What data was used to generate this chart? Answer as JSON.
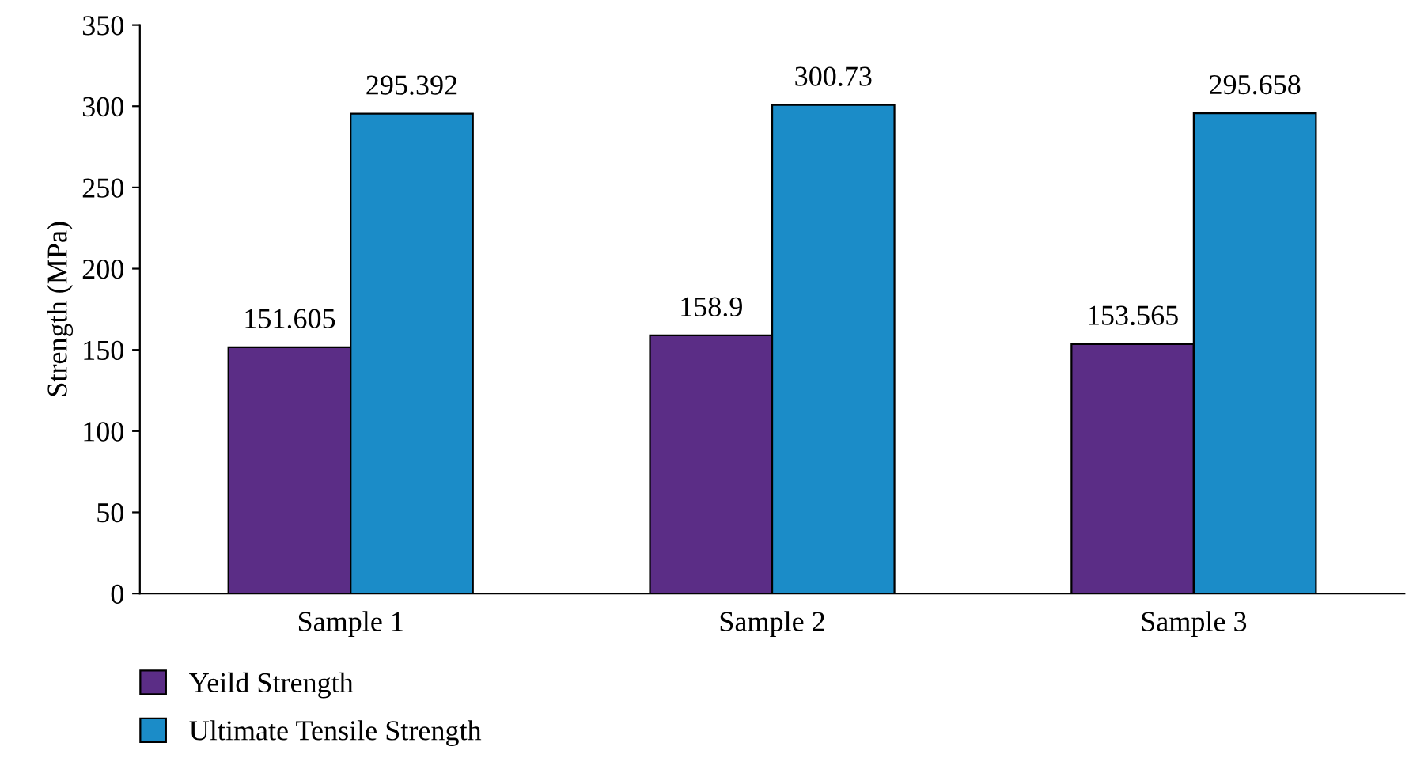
{
  "chart_data": {
    "type": "bar",
    "ylabel": "Strength (MPa)",
    "categories": [
      "Sample 1",
      "Sample 2",
      "Sample 3"
    ],
    "series": [
      {
        "name": "Yeild Strength",
        "color": "#5b2d86",
        "values": [
          151.605,
          158.9,
          153.565
        ]
      },
      {
        "name": "Ultimate Tensile Strength",
        "color": "#1b8cc8",
        "values": [
          295.392,
          300.73,
          295.658
        ]
      }
    ],
    "ylim": [
      0,
      350
    ],
    "yticks": [
      0,
      50,
      100,
      150,
      200,
      250,
      300,
      350
    ],
    "data_labels": true,
    "grid": false,
    "legend": "bottom left"
  }
}
